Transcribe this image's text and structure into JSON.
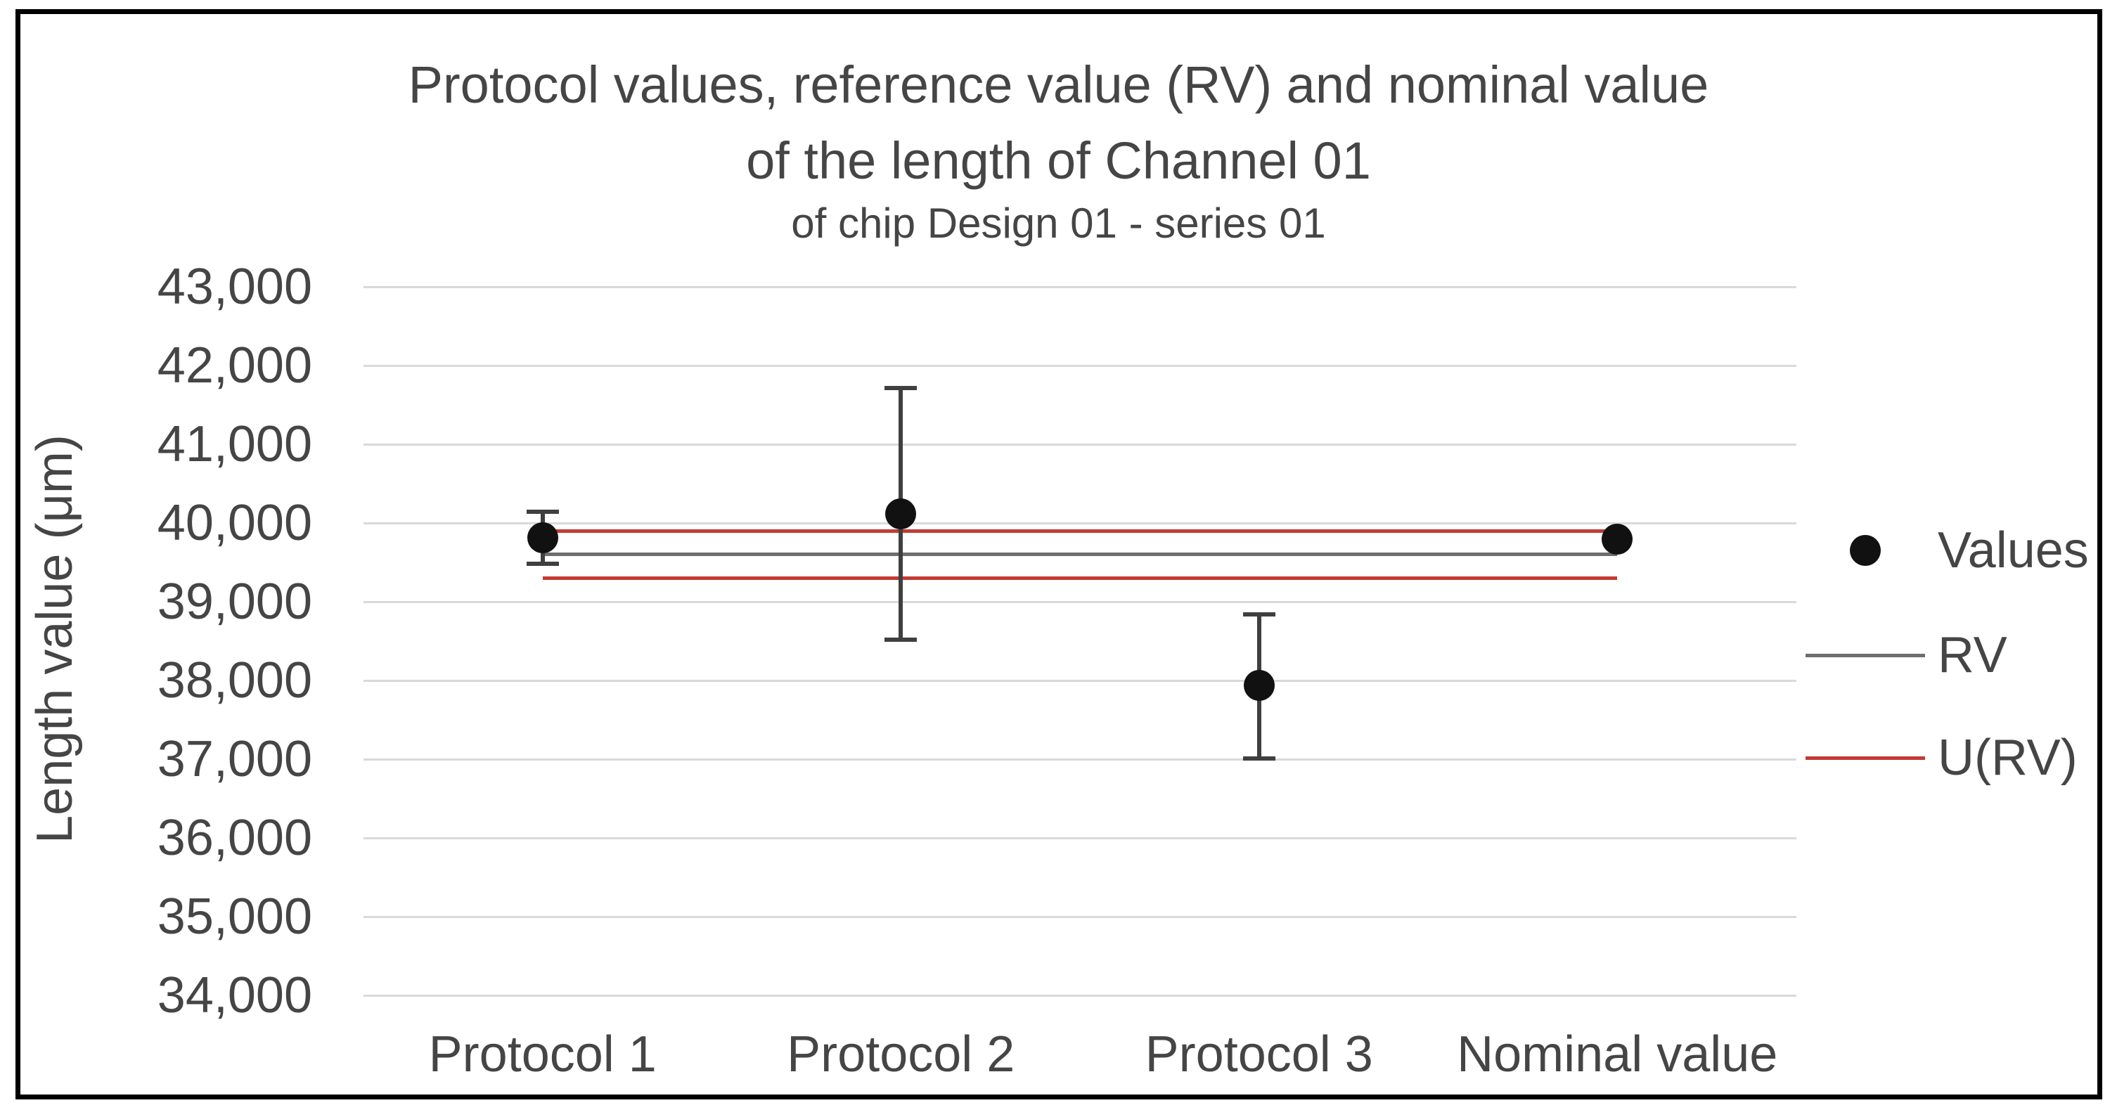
{
  "chart_data": {
    "type": "scatter",
    "title_line1": "Protocol values, reference value (RV) and nominal value",
    "title_line2": "of the length of Channel 01",
    "subtitle": "of chip Design 01 - series 01",
    "ylabel": "Length value (μm)",
    "ylim": [
      34000,
      43000
    ],
    "grid": "horizontal-only",
    "yticks": [
      {
        "value": 43000,
        "label": "43,000"
      },
      {
        "value": 42000,
        "label": "42,000"
      },
      {
        "value": 41000,
        "label": "41,000"
      },
      {
        "value": 40000,
        "label": "40,000"
      },
      {
        "value": 39000,
        "label": "39,000"
      },
      {
        "value": 38000,
        "label": "38,000"
      },
      {
        "value": 37000,
        "label": "37,000"
      },
      {
        "value": 36000,
        "label": "36,000"
      },
      {
        "value": 35000,
        "label": "35,000"
      },
      {
        "value": 34000,
        "label": "34,000"
      }
    ],
    "categories": [
      "Protocol 1",
      "Protocol 2",
      "Protocol 3",
      "Nominal value"
    ],
    "values_series": {
      "name": "Values",
      "points": [
        {
          "category": "Protocol 1",
          "value": 39815,
          "error_upper": 40140,
          "error_lower": 39480
        },
        {
          "category": "Protocol 2",
          "value": 40115,
          "error_upper": 41715,
          "error_lower": 38515
        },
        {
          "category": "Protocol 3",
          "value": 37940,
          "error_upper": 38840,
          "error_lower": 37010
        },
        {
          "category": "Nominal value",
          "value": 39795,
          "error_upper": null,
          "error_lower": null
        }
      ]
    },
    "reference_lines": {
      "rv": {
        "name": "RV",
        "value": 39600
      },
      "u_rv": {
        "name": "U(RV)",
        "upper": 39900,
        "lower": 39300
      }
    },
    "legend": {
      "position": "right",
      "entries": [
        {
          "label": "Values",
          "marker": "black-dot"
        },
        {
          "label": "RV",
          "marker": "gray-line"
        },
        {
          "label": "U(RV)",
          "marker": "red-line"
        }
      ]
    }
  },
  "colors": {
    "values_point": "#111111",
    "error_bar": "#3F3F3F",
    "rv_line": "#6E6E6E",
    "u_rv_line": "#C23B34",
    "gridline": "#D9D9D9",
    "text": "#454545",
    "frame_border": "#000000",
    "background": "#FFFFFF"
  }
}
